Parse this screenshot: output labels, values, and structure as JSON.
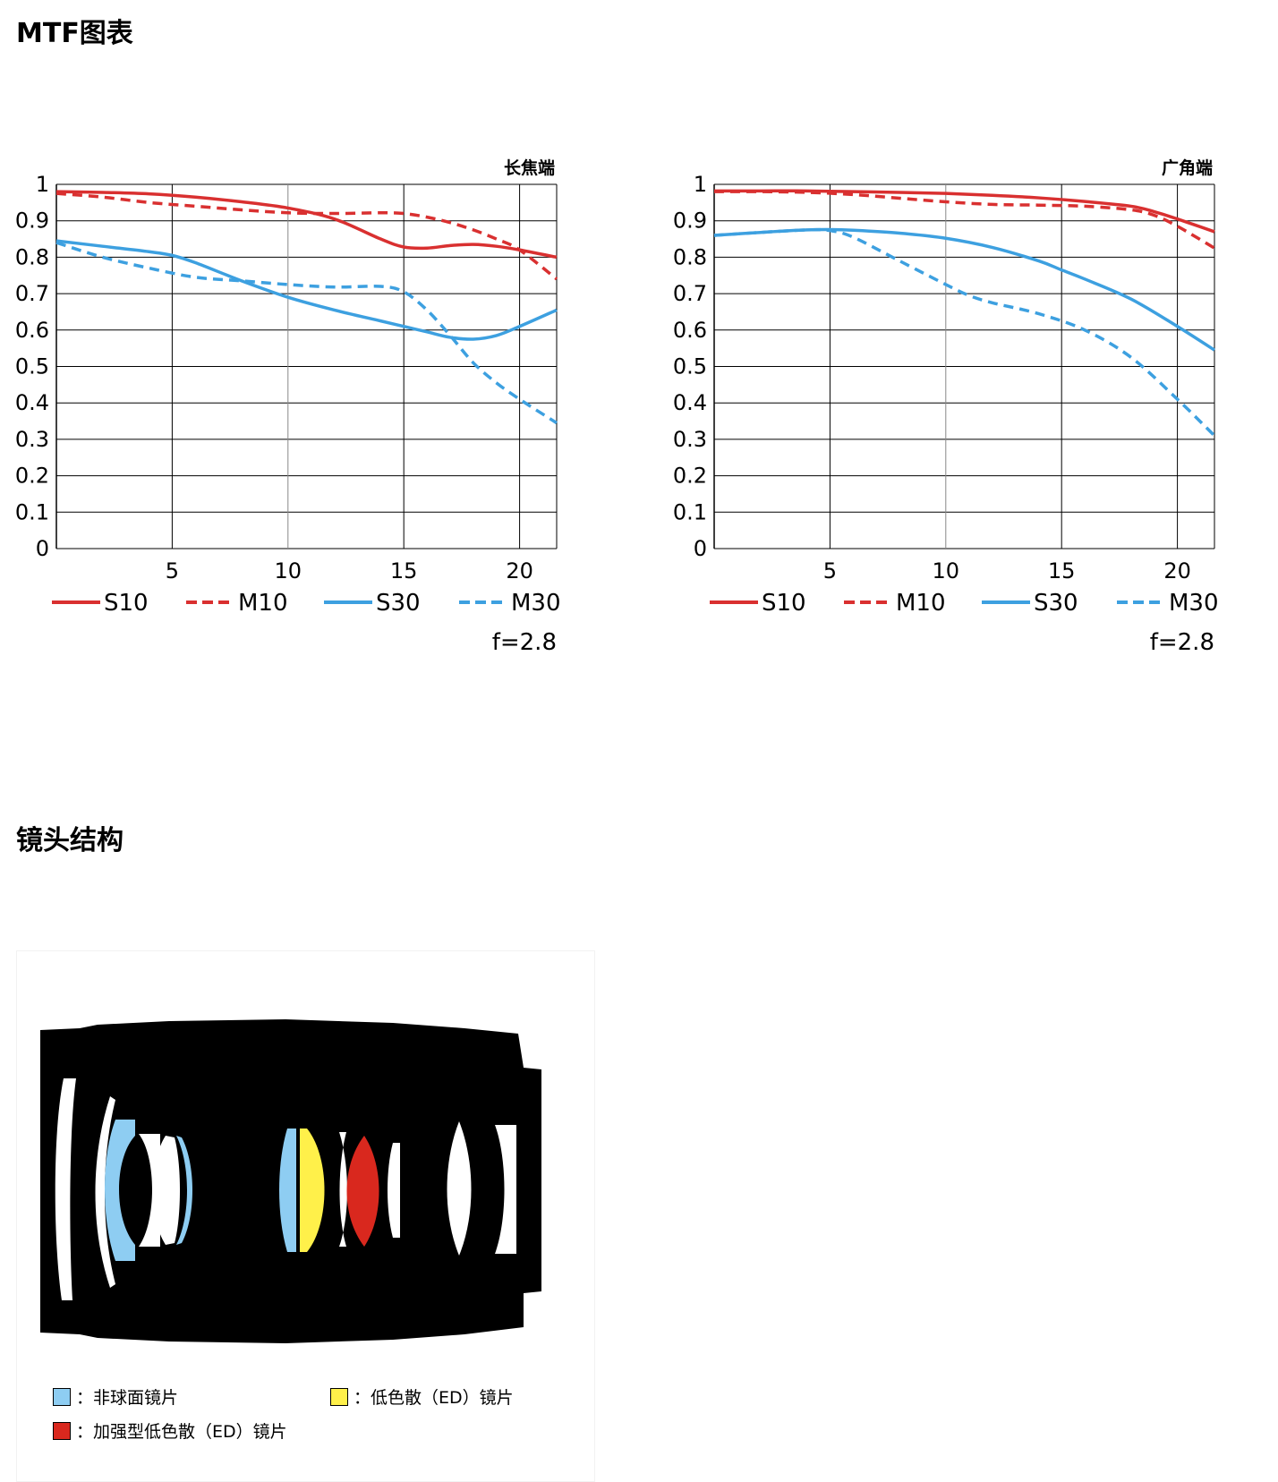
{
  "sections": {
    "mtf_title": "MTF图表",
    "lens_title": "镜头结构"
  },
  "chart_data": [
    {
      "type": "line",
      "title": "长焦端",
      "note": "f=2.8",
      "xlim": [
        0,
        21.6
      ],
      "ylim": [
        0,
        1
      ],
      "xticks": [
        "5",
        "10",
        "15",
        "20"
      ],
      "yticks": [
        "0",
        "0.1",
        "0.2",
        "0.3",
        "0.4",
        "0.5",
        "0.6",
        "0.7",
        "0.8",
        "0.9",
        "1"
      ],
      "grid": true,
      "legend_position": "bottom",
      "series": [
        {
          "name": "S10",
          "color": "#d93030",
          "style": "solid",
          "x": [
            0,
            2,
            4,
            6,
            8,
            10,
            12,
            14,
            15,
            16,
            17,
            18,
            19,
            20,
            21.6
          ],
          "y": [
            0.98,
            0.978,
            0.974,
            0.965,
            0.952,
            0.935,
            0.905,
            0.85,
            0.828,
            0.825,
            0.832,
            0.835,
            0.83,
            0.82,
            0.8
          ]
        },
        {
          "name": "M10",
          "color": "#d93030",
          "style": "dashed",
          "x": [
            0,
            2,
            4,
            6,
            8,
            10,
            12,
            14,
            15,
            16,
            17,
            18,
            19,
            20,
            21.6
          ],
          "y": [
            0.975,
            0.965,
            0.95,
            0.94,
            0.93,
            0.922,
            0.92,
            0.922,
            0.92,
            0.91,
            0.895,
            0.875,
            0.85,
            0.82,
            0.74
          ]
        },
        {
          "name": "S30",
          "color": "#3da0e0",
          "style": "solid",
          "x": [
            0,
            2,
            4,
            5,
            6,
            8,
            10,
            12,
            14,
            15,
            16,
            17,
            18,
            19,
            20,
            21.6
          ],
          "y": [
            0.845,
            0.83,
            0.815,
            0.805,
            0.785,
            0.735,
            0.69,
            0.655,
            0.625,
            0.61,
            0.595,
            0.58,
            0.575,
            0.585,
            0.61,
            0.655
          ]
        },
        {
          "name": "M30",
          "color": "#3da0e0",
          "style": "dashed",
          "x": [
            0,
            2,
            4,
            6,
            8,
            10,
            12,
            14,
            15,
            16,
            17,
            18,
            19,
            20,
            21.6
          ],
          "y": [
            0.84,
            0.8,
            0.77,
            0.745,
            0.735,
            0.725,
            0.718,
            0.72,
            0.705,
            0.655,
            0.585,
            0.51,
            0.455,
            0.41,
            0.345
          ]
        }
      ]
    },
    {
      "type": "line",
      "title": "广角端",
      "note": "f=2.8",
      "xlim": [
        0,
        21.6
      ],
      "ylim": [
        0,
        1
      ],
      "xticks": [
        "5",
        "10",
        "15",
        "20"
      ],
      "yticks": [
        "0",
        "0.1",
        "0.2",
        "0.3",
        "0.4",
        "0.5",
        "0.6",
        "0.7",
        "0.8",
        "0.9",
        "1"
      ],
      "grid": true,
      "legend_position": "bottom",
      "series": [
        {
          "name": "S10",
          "color": "#d93030",
          "style": "solid",
          "x": [
            0,
            2,
            4,
            6,
            8,
            10,
            12,
            14,
            16,
            18,
            19,
            20,
            21.6
          ],
          "y": [
            0.982,
            0.982,
            0.982,
            0.98,
            0.978,
            0.975,
            0.97,
            0.963,
            0.953,
            0.94,
            0.925,
            0.905,
            0.87
          ]
        },
        {
          "name": "M10",
          "color": "#d93030",
          "style": "dashed",
          "x": [
            0,
            2,
            4,
            6,
            8,
            10,
            12,
            14,
            16,
            18,
            19,
            20,
            21.6
          ],
          "y": [
            0.98,
            0.98,
            0.978,
            0.972,
            0.962,
            0.952,
            0.945,
            0.943,
            0.94,
            0.93,
            0.915,
            0.885,
            0.825
          ]
        },
        {
          "name": "S30",
          "color": "#3da0e0",
          "style": "solid",
          "x": [
            0,
            2,
            4,
            5,
            6,
            8,
            10,
            12,
            14,
            15,
            16,
            18,
            20,
            21.6
          ],
          "y": [
            0.86,
            0.868,
            0.875,
            0.876,
            0.874,
            0.866,
            0.852,
            0.827,
            0.79,
            0.765,
            0.74,
            0.685,
            0.61,
            0.545
          ]
        },
        {
          "name": "M30",
          "color": "#3da0e0",
          "style": "dashed",
          "x": [
            0,
            2,
            4,
            5,
            6,
            8,
            10,
            11,
            12,
            14,
            16,
            18,
            20,
            21.6
          ],
          "y": [
            0.86,
            0.868,
            0.875,
            0.873,
            0.855,
            0.79,
            0.725,
            0.695,
            0.675,
            0.645,
            0.6,
            0.525,
            0.41,
            0.31
          ]
        }
      ]
    }
  ],
  "lens_legend": [
    {
      "label": "：非球面镜片",
      "color": "#8ecdf2"
    },
    {
      "label": "：低色散（ED）镜片",
      "color": "#fff04a"
    },
    {
      "label": "：加强型低色散（ED）镜片",
      "color": "#d9281e"
    }
  ]
}
